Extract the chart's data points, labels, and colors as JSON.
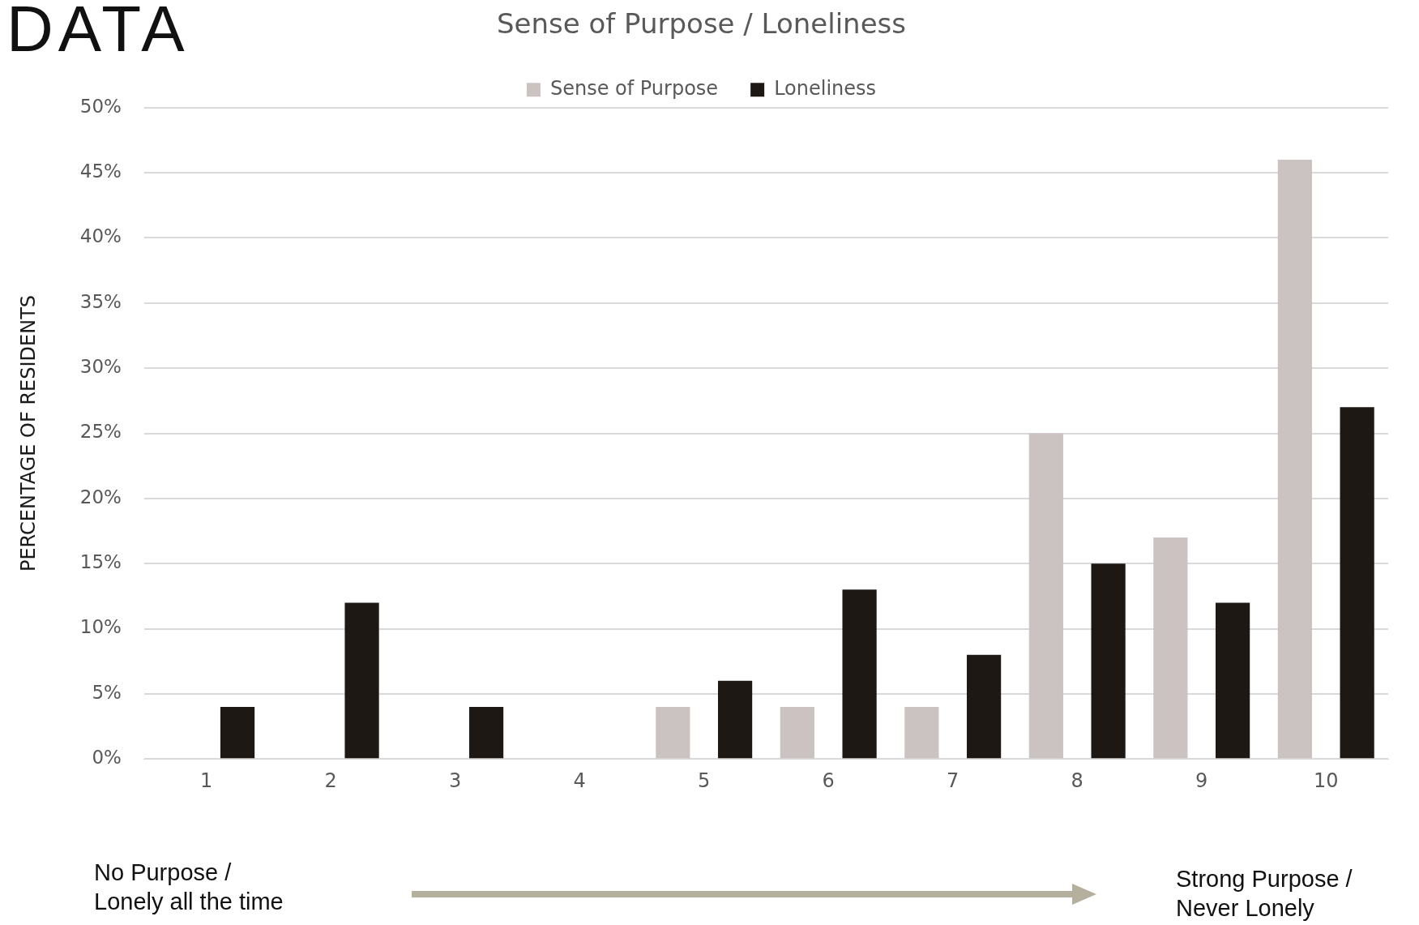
{
  "chart_data": {
    "type": "bar",
    "title": "Sense of Purpose / Loneliness",
    "ylabel": "PERCENTAGE OF RESIDENTS",
    "categories": [
      "1",
      "2",
      "3",
      "4",
      "5",
      "6",
      "7",
      "8",
      "9",
      "10"
    ],
    "series": [
      {
        "name": "Sense of Purpose",
        "color": "#cbc3c1",
        "values": [
          0,
          0,
          0,
          0,
          4,
          4,
          4,
          25,
          17,
          46
        ]
      },
      {
        "name": "Loneliness",
        "color": "#1e1814",
        "values": [
          4,
          12,
          4,
          0,
          6,
          13,
          8,
          15,
          12,
          27
        ]
      }
    ],
    "ylim": [
      0,
      50
    ],
    "yticks": [
      {
        "value": 0,
        "label": "0%"
      },
      {
        "value": 5,
        "label": "5%"
      },
      {
        "value": 10,
        "label": "10%"
      },
      {
        "value": 15,
        "label": "15%"
      },
      {
        "value": 20,
        "label": "20%"
      },
      {
        "value": 25,
        "label": "25%"
      },
      {
        "value": 30,
        "label": "30%"
      },
      {
        "value": 35,
        "label": "35%"
      },
      {
        "value": 40,
        "label": "40%"
      },
      {
        "value": 45,
        "label": "45%"
      },
      {
        "value": 50,
        "label": "50%"
      }
    ],
    "grid": "y",
    "legend": "top",
    "annotations": [
      "DATA",
      "No Purpose /\nLonely all the time",
      "Strong Purpose /\nNever Lonely"
    ]
  }
}
